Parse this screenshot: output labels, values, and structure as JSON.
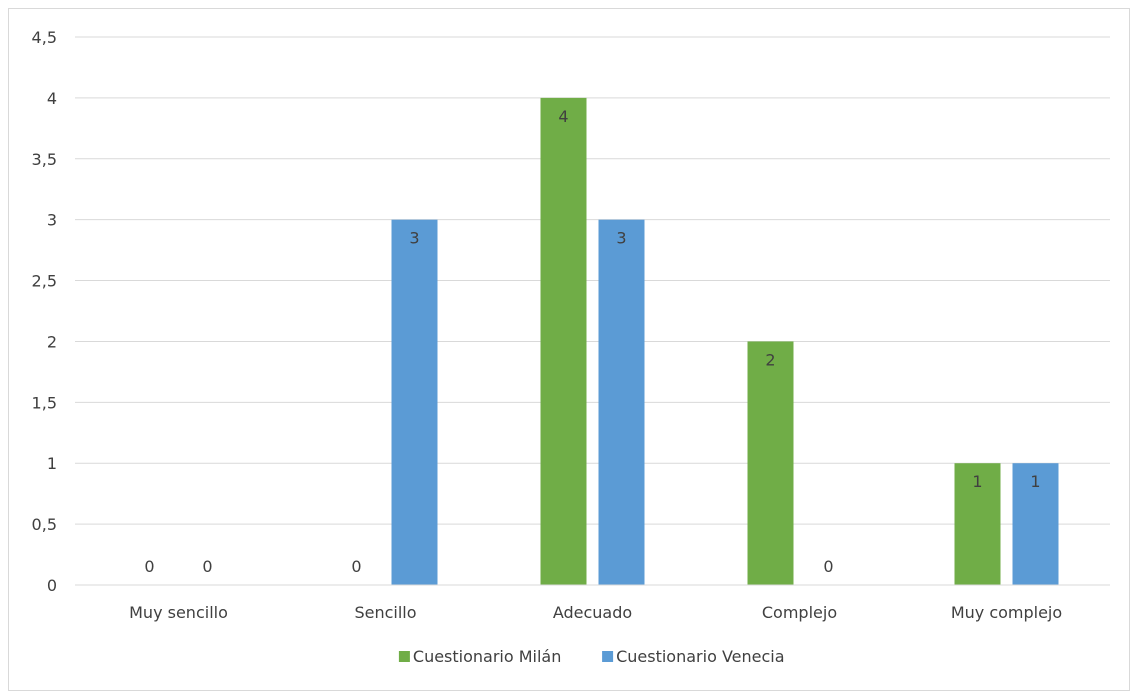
{
  "chart_data": {
    "type": "bar",
    "title": "",
    "xlabel": "",
    "ylabel": "",
    "categories": [
      "Muy sencillo",
      "Sencillo",
      "Adecuado",
      "Complejo",
      "Muy complejo"
    ],
    "series": [
      {
        "name": "Cuestionario Milán",
        "color": "#70ad47",
        "values": [
          0,
          0,
          4,
          2,
          1
        ]
      },
      {
        "name": "Cuestionario Venecia",
        "color": "#5b9bd5",
        "values": [
          0,
          3,
          3,
          0,
          1
        ]
      }
    ],
    "ylim": [
      0,
      4.5
    ],
    "ytick_labels": [
      "0",
      "0,5",
      "1",
      "1,5",
      "2",
      "2,5",
      "3",
      "3,5",
      "4",
      "4,5"
    ],
    "grid": true,
    "legend_position": "bottom",
    "data_labels": true
  }
}
